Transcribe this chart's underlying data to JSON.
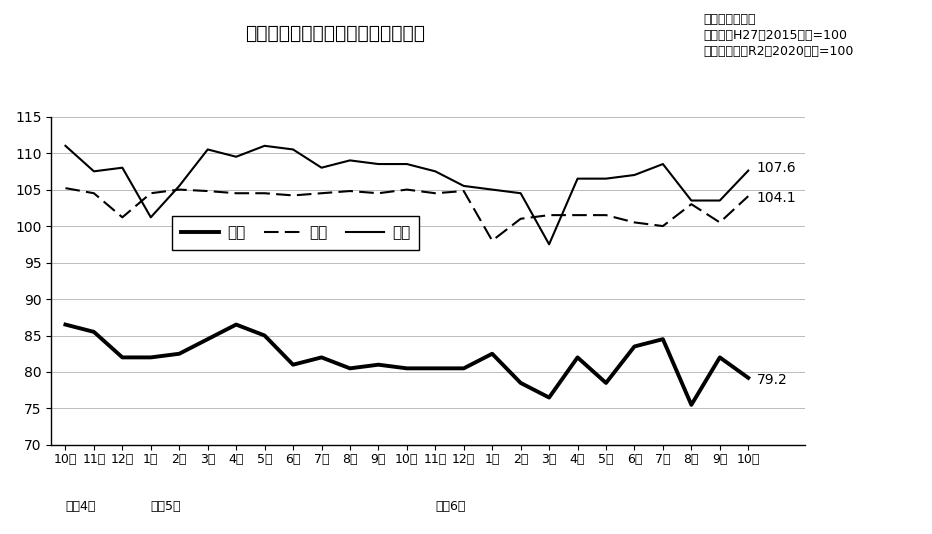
{
  "title": "本県・全国・九州の生産指数の推移",
  "subtitle_line1": "季節調整済指数",
  "subtitle_line2": "宮崎県はH27（2015）年=100",
  "subtitle_line3": "全国、九州はR2（2020）年=100",
  "x_labels": [
    "10月",
    "11月",
    "12月",
    "1月",
    "2月",
    "3月",
    "4月",
    "5月",
    "6月",
    "7月",
    "8月",
    "9月",
    "10月",
    "11月",
    "12月",
    "1月",
    "2月",
    "3月",
    "4月",
    "5月",
    "6月",
    "7月",
    "8月",
    "9月",
    "10月"
  ],
  "era_labels": [
    {
      "text": "令和4年",
      "index": 0
    },
    {
      "text": "令和5年",
      "index": 3
    },
    {
      "text": "令和6年",
      "index": 13
    }
  ],
  "miyazaki": [
    86.5,
    85.5,
    82.0,
    82.0,
    82.5,
    84.5,
    86.5,
    85.0,
    81.0,
    82.0,
    80.5,
    81.0,
    80.5,
    80.5,
    80.5,
    82.5,
    78.5,
    76.5,
    82.0,
    78.5,
    83.5,
    84.5,
    75.5,
    82.0,
    79.2
  ],
  "zenkoku": [
    105.2,
    104.5,
    101.2,
    104.5,
    105.0,
    104.8,
    104.5,
    104.5,
    104.2,
    104.5,
    104.8,
    104.5,
    105.0,
    104.5,
    104.8,
    98.0,
    101.0,
    101.5,
    101.5,
    101.5,
    100.5,
    100.0,
    103.0,
    100.5,
    104.1
  ],
  "kyushu": [
    111.0,
    107.5,
    108.0,
    101.2,
    105.5,
    110.5,
    109.5,
    111.0,
    110.5,
    108.0,
    109.0,
    108.5,
    108.5,
    107.5,
    105.5,
    105.0,
    104.5,
    97.5,
    106.5,
    106.5,
    107.0,
    108.5,
    103.5,
    103.5,
    107.6
  ],
  "ylim": [
    70,
    115
  ],
  "yticks": [
    70,
    75,
    80,
    85,
    90,
    95,
    100,
    105,
    110,
    115
  ],
  "line_color": "#000000",
  "bg_color": "#ffffff",
  "plot_bg_color": "#ffffff",
  "grid_color": "#bbbbbb",
  "label_miyazaki": "宮崎",
  "label_zenkoku": "全国",
  "label_kyushu": "九州",
  "annotation_miyazaki": "79.2",
  "annotation_kyushu": "107.6",
  "annotation_zenkoku": "104.1"
}
